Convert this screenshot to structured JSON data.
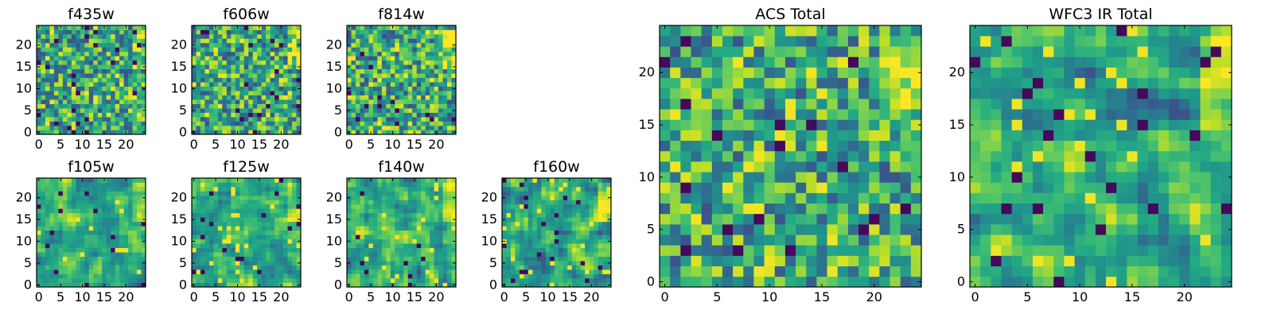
{
  "chart_data": [
    {
      "id": "f435w",
      "type": "heatmap",
      "title": "f435w",
      "xlim": [
        -0.5,
        24.5
      ],
      "ylim": [
        -0.5,
        24.5
      ],
      "xticks": [
        0,
        5,
        10,
        15,
        20
      ],
      "yticks": [
        0,
        5,
        10,
        15,
        20
      ],
      "colormap": "viridis",
      "grid": "25x25",
      "pattern": "noise",
      "seed": 11
    },
    {
      "id": "f606w",
      "type": "heatmap",
      "title": "f606w",
      "xlim": [
        -0.5,
        24.5
      ],
      "ylim": [
        -0.5,
        24.5
      ],
      "xticks": [
        0,
        5,
        10,
        15,
        20
      ],
      "yticks": [
        0,
        5,
        10,
        15,
        20
      ],
      "colormap": "viridis",
      "grid": "25x25",
      "pattern": "noise",
      "seed": 23
    },
    {
      "id": "f814w",
      "type": "heatmap",
      "title": "f814w",
      "xlim": [
        -0.5,
        24.5
      ],
      "ylim": [
        -0.5,
        24.5
      ],
      "xticks": [
        0,
        5,
        10,
        15,
        20
      ],
      "yticks": [
        0,
        5,
        10,
        15,
        20
      ],
      "colormap": "viridis",
      "grid": "25x25",
      "pattern": "noise",
      "seed": 37
    },
    {
      "id": "f105w",
      "type": "heatmap",
      "title": "f105w",
      "xlim": [
        -0.5,
        24.5
      ],
      "ylim": [
        -0.5,
        24.5
      ],
      "xticks": [
        0,
        5,
        10,
        15,
        20
      ],
      "yticks": [
        0,
        5,
        10,
        15,
        20
      ],
      "colormap": "viridis",
      "grid": "25x25",
      "pattern": "smooth",
      "seed": 41
    },
    {
      "id": "f125w",
      "type": "heatmap",
      "title": "f125w",
      "xlim": [
        -0.5,
        24.5
      ],
      "ylim": [
        -0.5,
        24.5
      ],
      "xticks": [
        0,
        5,
        10,
        15,
        20
      ],
      "yticks": [
        0,
        5,
        10,
        15,
        20
      ],
      "colormap": "viridis",
      "grid": "25x25",
      "pattern": "smooth",
      "seed": 53
    },
    {
      "id": "f140w",
      "type": "heatmap",
      "title": "f140w",
      "xlim": [
        -0.5,
        24.5
      ],
      "ylim": [
        -0.5,
        24.5
      ],
      "xticks": [
        0,
        5,
        10,
        15,
        20
      ],
      "yticks": [
        0,
        5,
        10,
        15,
        20
      ],
      "colormap": "viridis",
      "grid": "25x25",
      "pattern": "smooth",
      "seed": 67
    },
    {
      "id": "f160w",
      "type": "heatmap",
      "title": "f160w",
      "xlim": [
        -0.5,
        24.5
      ],
      "ylim": [
        -0.5,
        24.5
      ],
      "xticks": [
        0,
        5,
        10,
        15,
        20
      ],
      "yticks": [
        0,
        5,
        10,
        15,
        20
      ],
      "colormap": "viridis",
      "grid": "25x25",
      "pattern": "smooth",
      "seed": 79
    },
    {
      "id": "acs-total",
      "type": "heatmap",
      "title": "ACS Total",
      "xlim": [
        -0.5,
        24.5
      ],
      "ylim": [
        -0.5,
        24.5
      ],
      "xticks": [
        0,
        5,
        10,
        15,
        20
      ],
      "yticks": [
        0,
        5,
        10,
        15,
        20
      ],
      "colormap": "viridis",
      "grid": "25x25",
      "pattern": "noise",
      "seed": 83
    },
    {
      "id": "wfc3-ir-total",
      "type": "heatmap",
      "title": "WFC3 IR Total",
      "xlim": [
        -0.5,
        24.5
      ],
      "ylim": [
        -0.5,
        24.5
      ],
      "xticks": [
        0,
        5,
        10,
        15,
        20
      ],
      "yticks": [
        0,
        5,
        10,
        15,
        20
      ],
      "colormap": "viridis",
      "grid": "25x25",
      "pattern": "smooth",
      "seed": 97
    }
  ]
}
